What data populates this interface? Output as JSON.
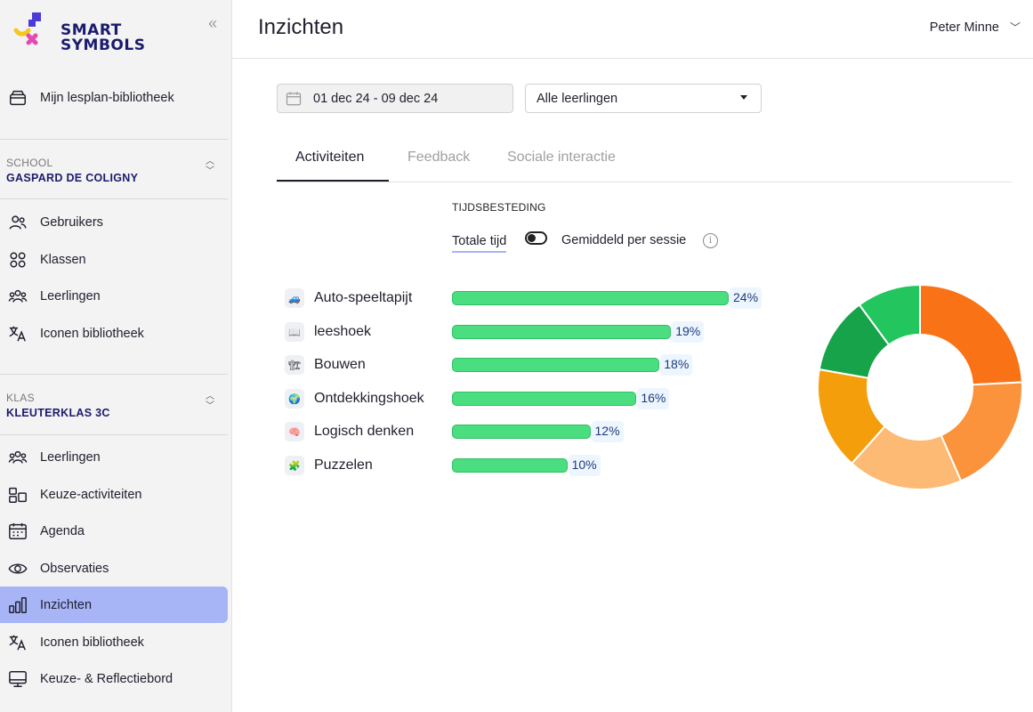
{
  "app": {
    "logo_line1": "SMART",
    "logo_line2": "SYMBOLS"
  },
  "sidebar": {
    "library": "Mijn lesplan-bibliotheek",
    "school": {
      "caption": "SCHOOL",
      "name": "GASPARD DE COLIGNY"
    },
    "school_items": [
      {
        "label": "Gebruikers",
        "icon": "users-icon"
      },
      {
        "label": "Klassen",
        "icon": "grid-icon"
      },
      {
        "label": "Leerlingen",
        "icon": "group-icon"
      },
      {
        "label": "Iconen bibliotheek",
        "icon": "translate-icon"
      }
    ],
    "klas": {
      "caption": "KLAS",
      "name": "KLEUTERKLAS 3C"
    },
    "klas_items": [
      {
        "label": "Leerlingen",
        "icon": "group-icon"
      },
      {
        "label": "Keuze-activiteiten",
        "icon": "choice-icon"
      },
      {
        "label": "Agenda",
        "icon": "calendar-icon"
      },
      {
        "label": "Observaties",
        "icon": "eye-icon"
      },
      {
        "label": "Inzichten",
        "icon": "chart-icon",
        "active": true
      },
      {
        "label": "Iconen bibliotheek",
        "icon": "translate-icon"
      },
      {
        "label": "Keuze- & Reflectiebord",
        "icon": "monitor-icon"
      }
    ]
  },
  "header": {
    "title": "Inzichten",
    "user": "Peter Minne"
  },
  "filters": {
    "date_range": "01 dec 24 - 09 dec 24",
    "students": "Alle leerlingen"
  },
  "tabs": [
    {
      "label": "Activiteiten",
      "active": true
    },
    {
      "label": "Feedback",
      "active": false
    },
    {
      "label": "Sociale interactie",
      "active": false
    }
  ],
  "time": {
    "caption": "TIJDSBESTEDING",
    "total_label": "Totale tijd",
    "avg_label": "Gemiddeld per sessie",
    "info": "i"
  },
  "chart_data": {
    "type": "bar",
    "categories": [
      "Auto-speeltapijt",
      "leeshoek",
      "Bouwen",
      "Ontdekkingshoek",
      "Logisch denken",
      "Puzzelen"
    ],
    "values": [
      24,
      19,
      18,
      16,
      12,
      10
    ],
    "value_labels": [
      "24%",
      "19%",
      "18%",
      "16%",
      "12%",
      "10%"
    ],
    "icons": [
      "car-icon",
      "book-icon",
      "crane-icon",
      "globe-icon",
      "brain-icon",
      "puzzle-icon"
    ],
    "bar_color": "#4ade80",
    "donut": {
      "type": "pie",
      "values": [
        24,
        19,
        18,
        16,
        12,
        10
      ],
      "colors": [
        "#f97316",
        "#fb923c",
        "#fdba74",
        "#f59e0b",
        "#16a34a",
        "#22c55e"
      ]
    }
  }
}
